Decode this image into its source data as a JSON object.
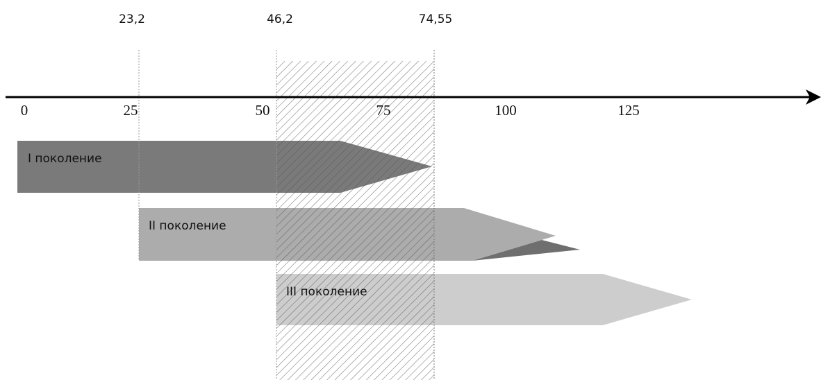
{
  "top_labels": [
    "23,2",
    "46,2",
    "74,55"
  ],
  "axis_ticks": [
    "0",
    "25",
    "50",
    "75",
    "100",
    "125"
  ],
  "generations": [
    "I поколение",
    "II поколение",
    "III поколение"
  ]
}
